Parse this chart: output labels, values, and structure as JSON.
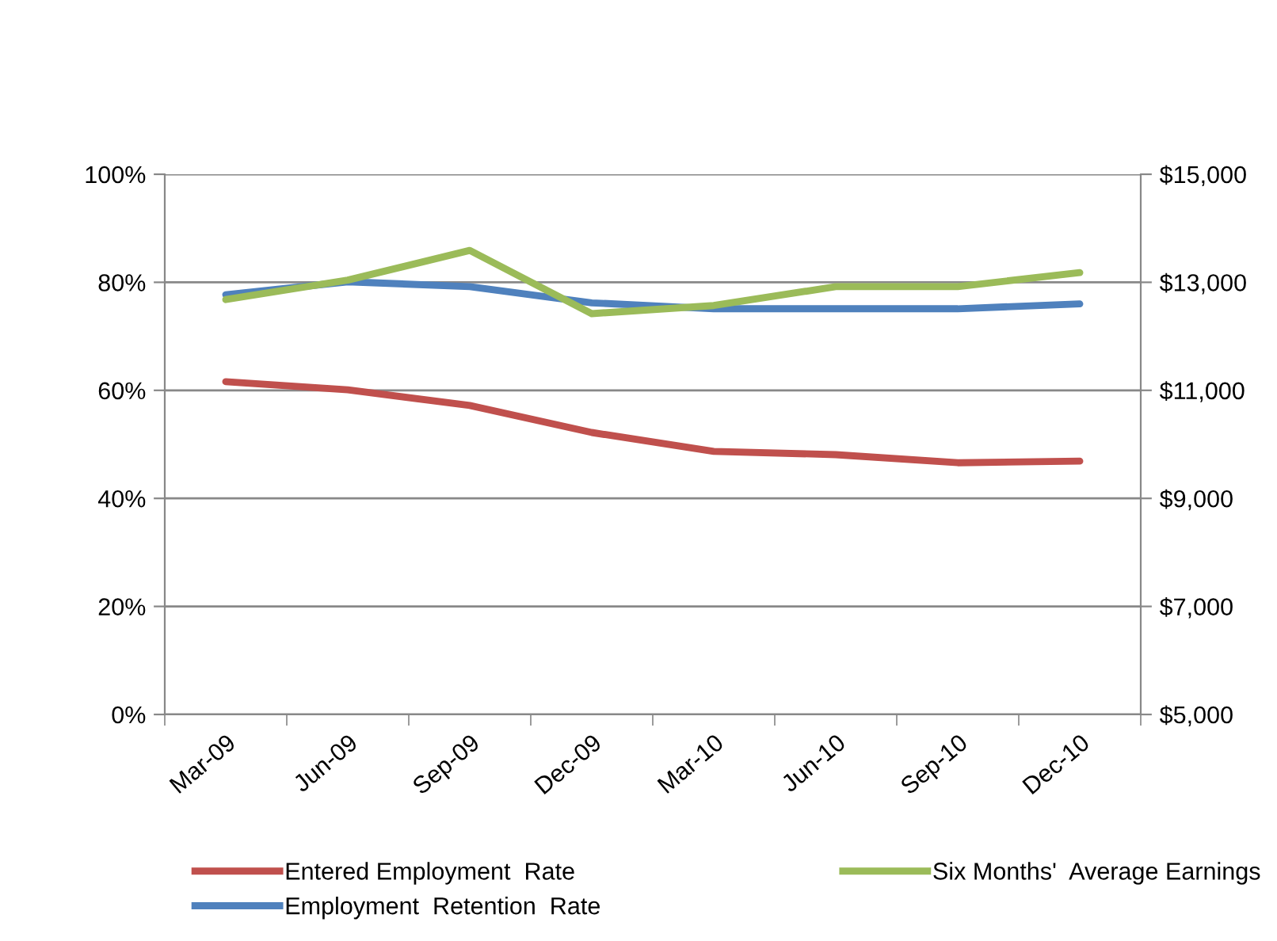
{
  "chart_data": {
    "type": "line",
    "categories": [
      "Mar-09",
      "Jun-09",
      "Sep-09",
      "Dec-09",
      "Mar-10",
      "Jun-10",
      "Sep-10",
      "Dec-10"
    ],
    "series": [
      {
        "name": "Entered Employment  Rate",
        "color": "#c0504d",
        "values": [
          61.6,
          60.1,
          57.2,
          52.2,
          48.7,
          48.1,
          46.6,
          46.9
        ]
      },
      {
        "name": "Employment  Retention  Rate",
        "color": "#4f81bd",
        "values": [
          77.7,
          80.1,
          79.2,
          76.2,
          75.1,
          75.1,
          75.1,
          76.0
        ]
      },
      {
        "name": "Six Months'  Average Earnings",
        "color": "#9bbb59",
        "axis": "y2",
        "values": [
          12680,
          13040,
          13590,
          12420,
          12570,
          12920,
          12920,
          13180
        ]
      }
    ],
    "ylim": [
      0,
      100
    ],
    "yticks": [
      {
        "value": 0,
        "label": "0%"
      },
      {
        "value": 20,
        "label": "20%"
      },
      {
        "value": 40,
        "label": "40%"
      },
      {
        "value": 60,
        "label": "60%"
      },
      {
        "value": 80,
        "label": "80%"
      },
      {
        "value": 100,
        "label": "100%"
      }
    ],
    "y2lim": [
      5000,
      15000
    ],
    "y2ticks": [
      {
        "value": 5000,
        "label": "$5,000"
      },
      {
        "value": 7000,
        "label": "$7,000"
      },
      {
        "value": 9000,
        "label": "$9,000"
      },
      {
        "value": 11000,
        "label": "$11,000"
      },
      {
        "value": 13000,
        "label": "$13,000"
      },
      {
        "value": 15000,
        "label": "$15,000"
      }
    ],
    "grid": "y",
    "legend": "bottom",
    "marker": "none",
    "line_style": "solid"
  }
}
